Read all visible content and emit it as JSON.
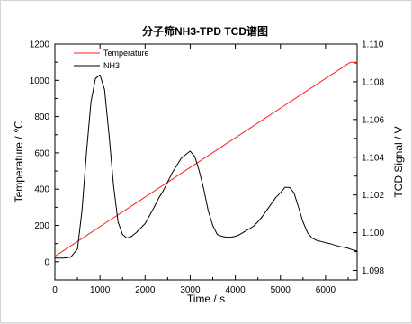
{
  "chart_data": {
    "type": "line",
    "title": "分子筛NH3-TPD TCD谱图",
    "xlabel": "Time / s",
    "ylabel_left": "Temperature / ℃",
    "ylabel_right": "TCD Signal / V",
    "xlim": [
      0,
      6700
    ],
    "ylim_left": [
      -100,
      1200
    ],
    "ylim_right": [
      1.0975,
      1.11
    ],
    "x_ticks": [
      "0",
      "1000",
      "2000",
      "3000",
      "4000",
      "5000",
      "6000"
    ],
    "y_left_ticks": [
      "0",
      "200",
      "400",
      "600",
      "800",
      "1000",
      "1200"
    ],
    "y_right_ticks": [
      "1.098",
      "1.100",
      "1.102",
      "1.104",
      "1.106",
      "1.108",
      "1.110"
    ],
    "grid": false,
    "legend_position": "top-left",
    "series": [
      {
        "name": "Temperature",
        "axis": "left",
        "color": "#ff2020",
        "x": [
          0,
          6550,
          6700
        ],
        "y": [
          30,
          1100,
          1100
        ]
      },
      {
        "name": "NH3",
        "axis": "left",
        "color": "#000000",
        "x": [
          0,
          200,
          350,
          500,
          600,
          700,
          800,
          900,
          1000,
          1100,
          1200,
          1300,
          1400,
          1500,
          1600,
          1700,
          1800,
          1900,
          2000,
          2100,
          2200,
          2300,
          2400,
          2500,
          2600,
          2700,
          2800,
          2900,
          3000,
          3100,
          3200,
          3300,
          3400,
          3500,
          3600,
          3700,
          3800,
          3900,
          4000,
          4100,
          4200,
          4300,
          4400,
          4500,
          4600,
          4700,
          4800,
          4900,
          5000,
          5100,
          5200,
          5300,
          5400,
          5500,
          5600,
          5700,
          5800,
          5900,
          6000,
          6100,
          6200,
          6300,
          6400,
          6500,
          6600,
          6700
        ],
        "y": [
          20,
          20,
          25,
          70,
          280,
          600,
          880,
          1010,
          1030,
          950,
          700,
          420,
          220,
          150,
          130,
          140,
          160,
          185,
          210,
          255,
          300,
          350,
          390,
          440,
          490,
          530,
          570,
          590,
          610,
          580,
          500,
          400,
          280,
          200,
          150,
          140,
          135,
          135,
          140,
          150,
          165,
          180,
          195,
          220,
          250,
          285,
          320,
          355,
          380,
          410,
          410,
          380,
          300,
          220,
          160,
          130,
          118,
          112,
          105,
          100,
          92,
          85,
          80,
          74,
          65,
          60
        ]
      }
    ]
  }
}
